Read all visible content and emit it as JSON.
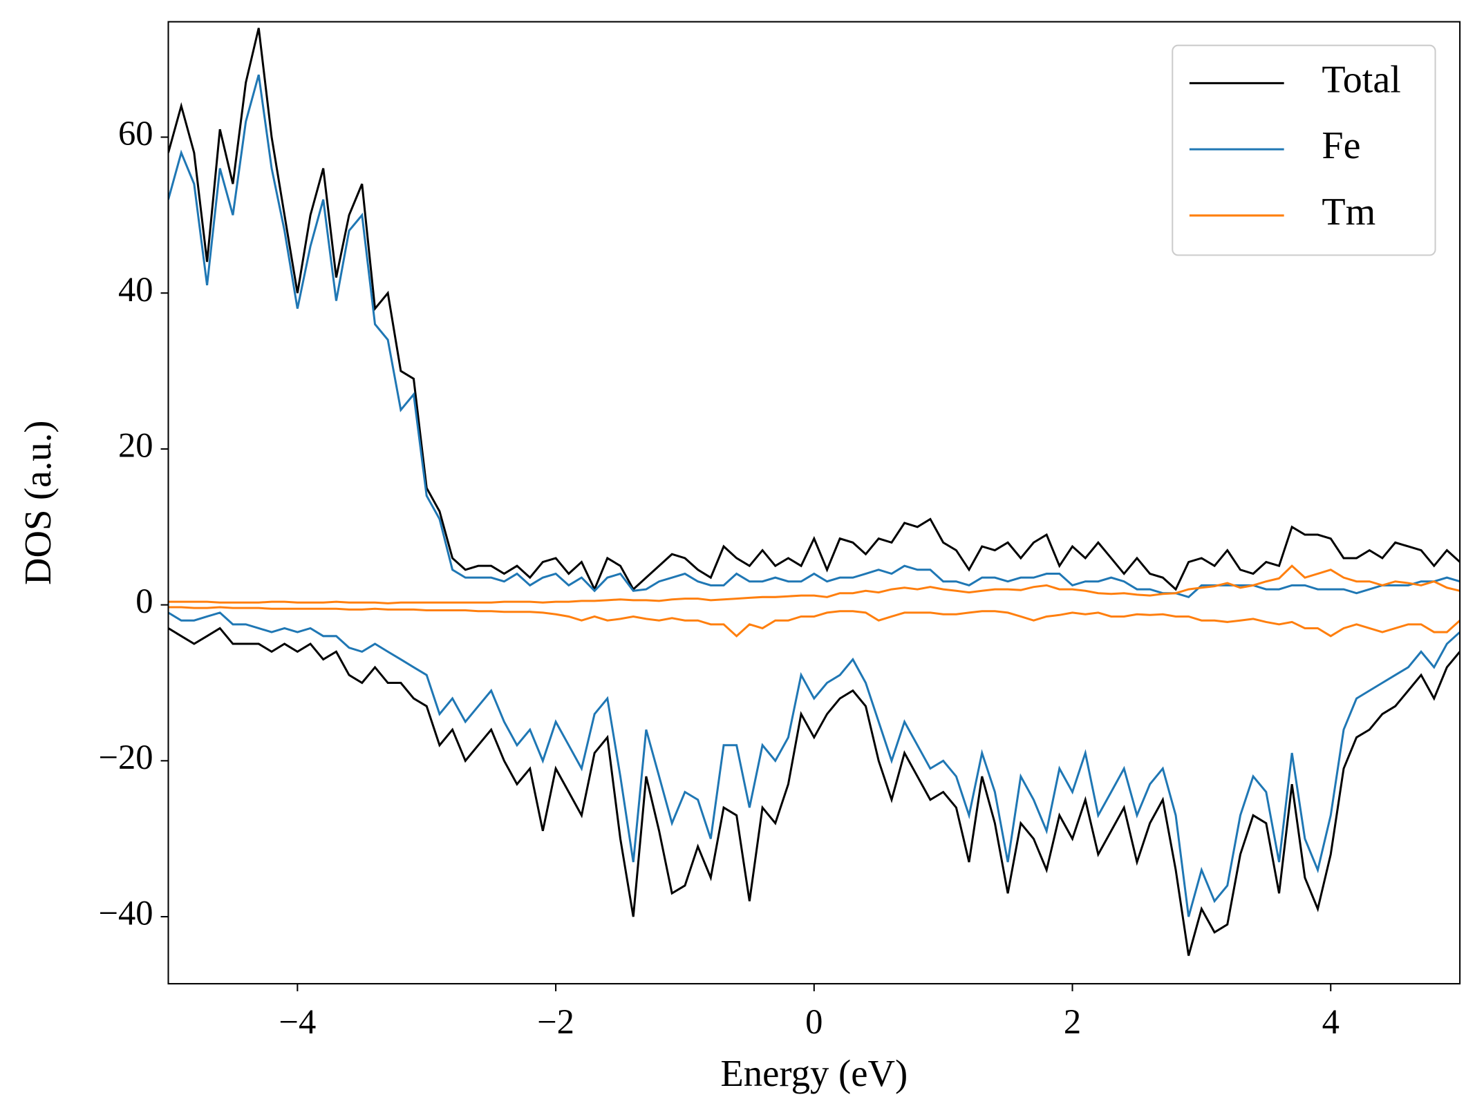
{
  "chart_data": {
    "type": "line",
    "xlabel": "Energy (eV)",
    "ylabel": "DOS (a.u.)",
    "xlim": [
      -5,
      5
    ],
    "ylim": [
      -48.6,
      74.8
    ],
    "xticks": [
      {
        "value": -4,
        "label": "−4"
      },
      {
        "value": -2,
        "label": "−2"
      },
      0,
      2,
      4
    ],
    "yticks": [
      {
        "value": -40,
        "label": "−40"
      },
      {
        "value": -20,
        "label": "−20"
      },
      0,
      20,
      40,
      60
    ],
    "legend": "upper right",
    "grid": false,
    "x": [
      -5.0,
      -4.9,
      -4.8,
      -4.7,
      -4.6,
      -4.5,
      -4.4,
      -4.3,
      -4.2,
      -4.1,
      -4.0,
      -3.9,
      -3.8,
      -3.7,
      -3.6,
      -3.5,
      -3.4,
      -3.3,
      -3.2,
      -3.1,
      -3.0,
      -2.9,
      -2.8,
      -2.7,
      -2.6,
      -2.5,
      -2.4,
      -2.3,
      -2.2,
      -2.1,
      -2.0,
      -1.9,
      -1.8,
      -1.7,
      -1.6,
      -1.5,
      -1.4,
      -1.3,
      -1.2,
      -1.1,
      -1.0,
      -0.9,
      -0.8,
      -0.7,
      -0.6,
      -0.5,
      -0.4,
      -0.3,
      -0.2,
      -0.1,
      0.0,
      0.1,
      0.2,
      0.3,
      0.4,
      0.5,
      0.6,
      0.7,
      0.8,
      0.9,
      1.0,
      1.1,
      1.2,
      1.3,
      1.4,
      1.5,
      1.6,
      1.7,
      1.8,
      1.9,
      2.0,
      2.1,
      2.2,
      2.3,
      2.4,
      2.5,
      2.6,
      2.7,
      2.8,
      2.9,
      3.0,
      3.1,
      3.2,
      3.3,
      3.4,
      3.5,
      3.6,
      3.7,
      3.8,
      3.9,
      4.0,
      4.1,
      4.2,
      4.3,
      4.4,
      4.5,
      4.6,
      4.7,
      4.8,
      4.9,
      5.0
    ],
    "series": [
      {
        "name": "Total",
        "color": "#000000",
        "values": [
          58,
          64,
          58,
          44,
          61,
          54,
          67,
          74,
          60,
          50,
          40,
          50,
          56,
          42,
          50,
          54,
          38,
          40,
          30,
          29,
          15,
          12,
          6,
          4.5,
          5,
          5,
          4,
          5,
          3.5,
          5.5,
          6,
          4,
          5.5,
          2,
          6,
          5,
          2,
          3.5,
          5,
          6.5,
          6,
          4.5,
          3.5,
          7.5,
          6,
          5,
          7,
          5,
          6,
          5,
          8.5,
          4.5,
          8.5,
          8,
          6.5,
          8.5,
          8,
          10.5,
          10,
          11,
          8,
          7,
          4.5,
          7.5,
          7,
          8,
          6,
          8,
          9,
          5,
          7.5,
          6,
          8,
          6,
          4,
          6,
          4,
          3.5,
          2,
          5.5,
          6,
          5,
          7,
          4.5,
          4,
          5.5,
          5,
          10,
          9,
          9,
          8.5,
          6,
          6,
          7,
          6,
          8,
          7.5,
          7,
          5,
          7,
          5.5
        ],
        "values_down": [
          -3,
          -4,
          -5,
          -4,
          -3,
          -5,
          -5,
          -5,
          -6,
          -5,
          -6,
          -5,
          -7,
          -6,
          -9,
          -10,
          -8,
          -10,
          -10,
          -12,
          -13,
          -18,
          -16,
          -20,
          -18,
          -16,
          -20,
          -23,
          -21,
          -29,
          -21,
          -24,
          -27,
          -19,
          -17,
          -30,
          -40,
          -22,
          -29,
          -37,
          -36,
          -31,
          -35,
          -26,
          -27,
          -38,
          -26,
          -28,
          -23,
          -14,
          -17,
          -14,
          -12,
          -11,
          -13,
          -20,
          -25,
          -19,
          -22,
          -25,
          -24,
          -26,
          -33,
          -22,
          -28,
          -37,
          -28,
          -30,
          -34,
          -27,
          -30,
          -25,
          -32,
          -29,
          -26,
          -33,
          -28,
          -25,
          -34,
          -45,
          -39,
          -42,
          -41,
          -32,
          -27,
          -28,
          -37,
          -23,
          -35,
          -39,
          -32,
          -21,
          -17,
          -16,
          -14,
          -13,
          -11,
          -9,
          -12,
          -8,
          -6
        ]
      },
      {
        "name": "Fe",
        "color": "#1f77b4",
        "values": [
          52,
          58,
          54,
          41,
          56,
          50,
          62,
          68,
          56,
          48,
          38,
          46,
          52,
          39,
          48,
          50,
          36,
          34,
          25,
          27,
          14,
          11,
          4.5,
          3.5,
          3.5,
          3.5,
          3,
          4,
          2.5,
          3.5,
          4,
          2.5,
          3.5,
          1.8,
          3.5,
          4,
          1.8,
          2,
          3,
          3.5,
          4,
          3,
          2.5,
          2.5,
          4,
          3,
          3,
          3.5,
          3,
          3,
          4,
          3,
          3.5,
          3.5,
          4,
          4.5,
          4,
          5,
          4.5,
          4.5,
          3,
          3,
          2.5,
          3.5,
          3.5,
          3,
          3.5,
          3.5,
          4,
          4,
          2.5,
          3,
          3,
          3.5,
          3,
          2,
          2,
          1.5,
          1.5,
          1,
          2.5,
          2.5,
          2.5,
          2.5,
          2.5,
          2,
          2,
          2.5,
          2.5,
          2,
          2,
          2,
          1.5,
          2,
          2.5,
          2.5,
          2.5,
          3,
          3,
          3.5,
          3
        ],
        "values_down": [
          -1,
          -2,
          -2,
          -1.5,
          -1,
          -2.5,
          -2.5,
          -3,
          -3.5,
          -3,
          -3.5,
          -3,
          -4,
          -4,
          -5.5,
          -6,
          -5,
          -6,
          -7,
          -8,
          -9,
          -14,
          -12,
          -15,
          -13,
          -11,
          -15,
          -18,
          -16,
          -20,
          -15,
          -18,
          -21,
          -14,
          -12,
          -22,
          -33,
          -16,
          -22,
          -28,
          -24,
          -25,
          -30,
          -18,
          -18,
          -26,
          -18,
          -20,
          -17,
          -9,
          -12,
          -10,
          -9,
          -7,
          -10,
          -15,
          -20,
          -15,
          -18,
          -21,
          -20,
          -22,
          -27,
          -19,
          -24,
          -33,
          -22,
          -25,
          -29,
          -21,
          -24,
          -19,
          -27,
          -24,
          -21,
          -27,
          -23,
          -21,
          -27,
          -40,
          -34,
          -38,
          -36,
          -27,
          -22,
          -24,
          -33,
          -19,
          -30,
          -34,
          -27,
          -16,
          -12,
          -11,
          -10,
          -9,
          -8,
          -6,
          -8,
          -5,
          -3.5
        ]
      },
      {
        "name": "Tm",
        "color": "#ff7f0e",
        "values": [
          0.4,
          0.4,
          0.4,
          0.4,
          0.3,
          0.3,
          0.3,
          0.3,
          0.4,
          0.4,
          0.3,
          0.3,
          0.3,
          0.4,
          0.3,
          0.3,
          0.3,
          0.2,
          0.3,
          0.3,
          0.3,
          0.3,
          0.3,
          0.3,
          0.3,
          0.3,
          0.4,
          0.4,
          0.4,
          0.3,
          0.4,
          0.4,
          0.5,
          0.5,
          0.6,
          0.7,
          0.6,
          0.6,
          0.5,
          0.7,
          0.8,
          0.8,
          0.6,
          0.7,
          0.8,
          0.9,
          1,
          1,
          1.1,
          1.2,
          1.2,
          1,
          1.5,
          1.5,
          1.8,
          1.6,
          2,
          2.2,
          2,
          2.3,
          2,
          1.8,
          1.6,
          1.8,
          2,
          2,
          1.9,
          2.3,
          2.5,
          2,
          2,
          1.8,
          1.5,
          1.4,
          1.5,
          1.3,
          1.2,
          1.4,
          1.5,
          2,
          2.2,
          2.4,
          2.8,
          2.2,
          2.5,
          3,
          3.4,
          5,
          3.5,
          4,
          4.5,
          3.5,
          3,
          3,
          2.5,
          3,
          2.8,
          2.5,
          3,
          2.2,
          1.8
        ],
        "values_down": [
          -0.3,
          -0.3,
          -0.4,
          -0.4,
          -0.3,
          -0.4,
          -0.4,
          -0.4,
          -0.5,
          -0.5,
          -0.5,
          -0.5,
          -0.5,
          -0.5,
          -0.6,
          -0.6,
          -0.5,
          -0.6,
          -0.6,
          -0.6,
          -0.7,
          -0.7,
          -0.7,
          -0.7,
          -0.8,
          -0.8,
          -0.9,
          -0.9,
          -0.9,
          -1,
          -1.2,
          -1.5,
          -2,
          -1.5,
          -2,
          -1.8,
          -1.5,
          -1.8,
          -2,
          -1.7,
          -2,
          -2,
          -2.5,
          -2.5,
          -4,
          -2.5,
          -3,
          -2,
          -2,
          -1.5,
          -1.5,
          -1,
          -0.8,
          -0.8,
          -1,
          -2,
          -1.5,
          -1,
          -1,
          -1,
          -1.2,
          -1.2,
          -1,
          -0.8,
          -0.8,
          -1,
          -1.5,
          -2,
          -1.5,
          -1.3,
          -1,
          -1.2,
          -1,
          -1.5,
          -1.5,
          -1.2,
          -1.3,
          -1.2,
          -1.5,
          -1.5,
          -2,
          -2,
          -2.2,
          -2,
          -1.8,
          -2.2,
          -2.5,
          -2.2,
          -3,
          -3,
          -4,
          -3,
          -2.5,
          -3,
          -3.5,
          -3,
          -2.5,
          -2.5,
          -3.5,
          -3.5,
          -2
        ]
      }
    ]
  }
}
